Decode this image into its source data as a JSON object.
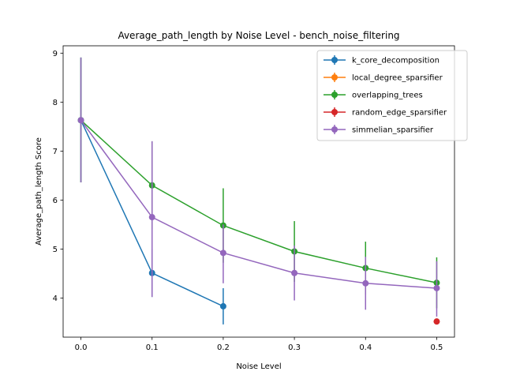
{
  "chart_data": {
    "type": "line",
    "title": "Average_path_length by Noise Level - bench_noise_filtering",
    "xlabel": "Noise Level",
    "ylabel": "Average_path_length Score",
    "xlim": [
      -0.025,
      0.525
    ],
    "ylim": [
      3.2,
      9.15
    ],
    "xticks": [
      0.0,
      0.1,
      0.2,
      0.3,
      0.4,
      0.5
    ],
    "xtick_labels": [
      "0.0",
      "0.1",
      "0.2",
      "0.3",
      "0.4",
      "0.5"
    ],
    "yticks": [
      4,
      5,
      6,
      7,
      8,
      9
    ],
    "ytick_labels": [
      "4",
      "5",
      "6",
      "7",
      "8",
      "9"
    ],
    "grid": false,
    "legend_position": "top-right",
    "series": [
      {
        "name": "k_core_decomposition",
        "color": "#1f77b4",
        "x": [
          0.0,
          0.1,
          0.2
        ],
        "y": [
          7.63,
          4.51,
          3.83
        ],
        "err_low": [
          6.36,
          4.02,
          3.46
        ],
        "err_high": [
          8.91,
          5.0,
          4.2
        ]
      },
      {
        "name": "local_degree_sparsifier",
        "color": "#ff7f0e",
        "x": [],
        "y": [],
        "err_low": [],
        "err_high": []
      },
      {
        "name": "overlapping_trees",
        "color": "#2ca02c",
        "x": [
          0.0,
          0.1,
          0.2,
          0.3,
          0.4,
          0.5
        ],
        "y": [
          7.63,
          6.3,
          5.48,
          4.95,
          4.61,
          4.31
        ],
        "err_low": [
          6.36,
          5.4,
          4.72,
          4.33,
          4.07,
          3.79
        ],
        "err_high": [
          8.91,
          7.2,
          6.24,
          5.57,
          5.15,
          4.83
        ]
      },
      {
        "name": "random_edge_sparsifier",
        "color": "#d62728",
        "x": [
          0.5
        ],
        "y": [
          3.52
        ],
        "err_low": [
          3.52
        ],
        "err_high": [
          3.52
        ]
      },
      {
        "name": "simmelian_sparsifier",
        "color": "#9467bd",
        "x": [
          0.0,
          0.1,
          0.2,
          0.3,
          0.4,
          0.5
        ],
        "y": [
          7.63,
          5.65,
          4.92,
          4.51,
          4.3,
          4.2
        ],
        "err_low": [
          6.36,
          4.02,
          4.3,
          3.95,
          3.76,
          3.62
        ],
        "err_high": [
          8.91,
          7.2,
          5.5,
          5.07,
          4.84,
          4.75
        ]
      }
    ]
  }
}
